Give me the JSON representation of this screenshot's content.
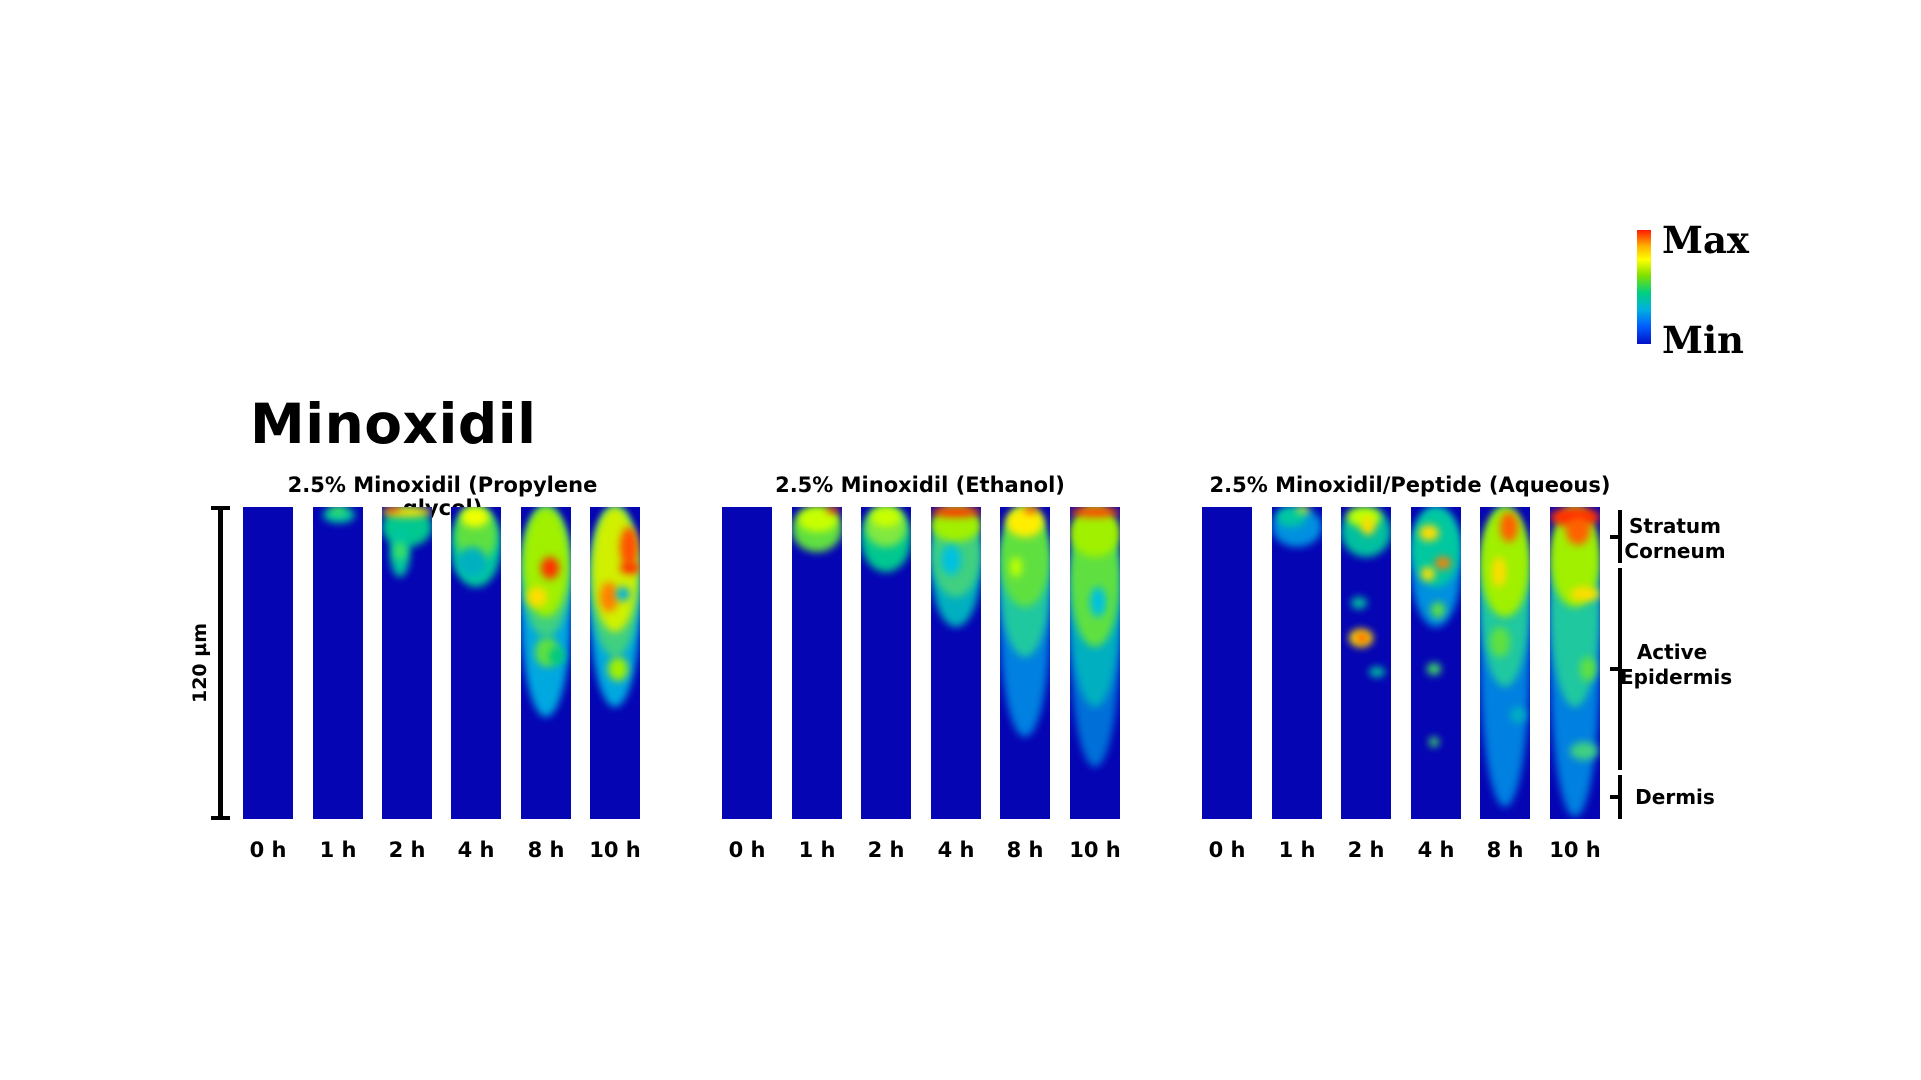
{
  "title": "Minoxidil",
  "colorbar": {
    "max_label": "Max",
    "min_label": "Min"
  },
  "scale_label": "120 µm",
  "layers": [
    {
      "name": "stratum-corneum",
      "label": "Stratum Corneum"
    },
    {
      "name": "active-epidermis",
      "label": "Active Epidermis"
    },
    {
      "name": "dermis",
      "label": "Dermis"
    }
  ],
  "groups": [
    {
      "title": "2.5% Minoxidil (Propylene glycol)",
      "time_labels": [
        "0 h",
        "1 h",
        "2 h",
        "4 h",
        "8 h",
        "10 h"
      ]
    },
    {
      "title": "2.5% Minoxidil (Ethanol)",
      "time_labels": [
        "0 h",
        "1 h",
        "2 h",
        "4 h",
        "8 h",
        "10 h"
      ]
    },
    {
      "title": "2.5% Minoxidil/Peptide (Aqueous)",
      "time_labels": [
        "0 h",
        "1 h",
        "2 h",
        "4 h",
        "8 h",
        "10 h"
      ]
    }
  ],
  "colors": {
    "background": "#0505b4",
    "max": "#ff1a00",
    "min": "#0010c8"
  }
}
